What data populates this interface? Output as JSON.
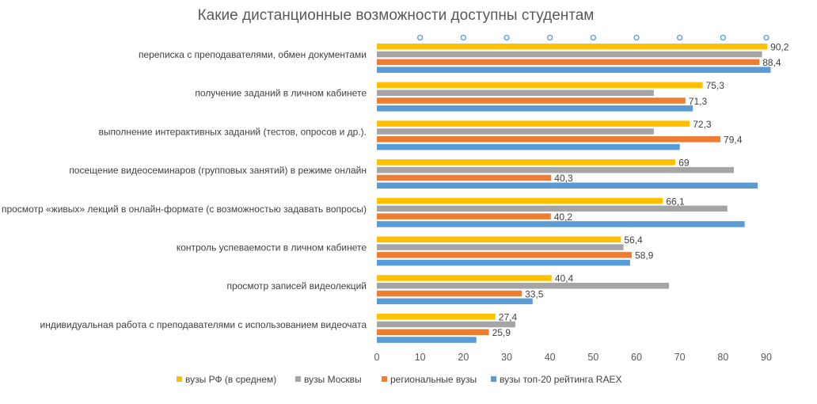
{
  "chart_data": {
    "type": "bar",
    "orientation": "horizontal",
    "title": "Какие дистанционные возможности доступны студентам",
    "categories": [
      "переписка с преподавателями, обмен документами",
      "получение заданий в личном кабинете",
      "выполнение интерактивных заданий (тестов, опросов и др.).",
      "посещение видеосеминаров (групповых занятий) в режиме онлайн",
      "просмотр «живых» лекций в онлайн-формате (с возможностью задавать вопросы)",
      "контроль успеваемости в личном кабинете",
      "просмотр записей видеолекций",
      "индивидуальная работа с преподавателями с использованием видеочата"
    ],
    "series": [
      {
        "name": "вузы РФ (в среднем)",
        "color": "#FFC000",
        "values": [
          90.2,
          75.3,
          72.3,
          69,
          66.1,
          56.4,
          40.4,
          27.4
        ],
        "labels": [
          "90,2",
          "75,3",
          "72,3",
          "69",
          "66,1",
          "56,4",
          "40,4",
          "27,4"
        ]
      },
      {
        "name": "вузы Москвы",
        "color": "#A5A5A5",
        "values": [
          89,
          64,
          64,
          82.5,
          81,
          57,
          67.5,
          32
        ],
        "labels": []
      },
      {
        "name": "региональные вузы",
        "color": "#ED7D31",
        "values": [
          88.4,
          71.3,
          79.4,
          40.3,
          40.2,
          58.9,
          33.5,
          25.9
        ],
        "labels": [
          "88,4",
          "71,3",
          "79,4",
          "40,3",
          "40,2",
          "58,9",
          "33,5",
          "25,9"
        ]
      },
      {
        "name": "вузы топ-20 рейтинга RAEX",
        "color": "#5B9BD5",
        "values": [
          91,
          73,
          70,
          88,
          85,
          58.5,
          36,
          23
        ],
        "labels": []
      }
    ],
    "xlim": [
      0,
      90
    ],
    "xticks": [
      "0",
      "10",
      "20",
      "30",
      "40",
      "50",
      "60",
      "70",
      "80",
      "90"
    ],
    "legend_position": "bottom",
    "top_marker_color": "#5B9BD5"
  }
}
